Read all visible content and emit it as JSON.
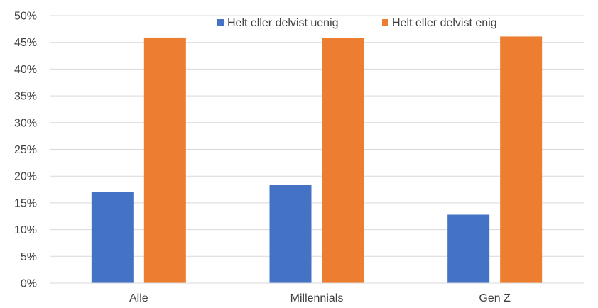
{
  "chart_data": {
    "type": "bar",
    "categories": [
      "Alle",
      "Millennials",
      "Gen Z"
    ],
    "series": [
      {
        "name": "Helt eller delvist uenig",
        "values": [
          17.0,
          18.3,
          12.8
        ],
        "color": "#4472C4"
      },
      {
        "name": "Helt eller delvist enig",
        "values": [
          45.9,
          45.8,
          46.1
        ],
        "color": "#ED7D31"
      }
    ],
    "ylim": [
      0,
      50
    ],
    "yticks": [
      "0%",
      "5%",
      "10%",
      "15%",
      "20%",
      "25%",
      "30%",
      "35%",
      "40%",
      "45%",
      "50%"
    ],
    "grid": true,
    "legend_position": "top-right",
    "gridline_color": "#D9D9D9"
  }
}
